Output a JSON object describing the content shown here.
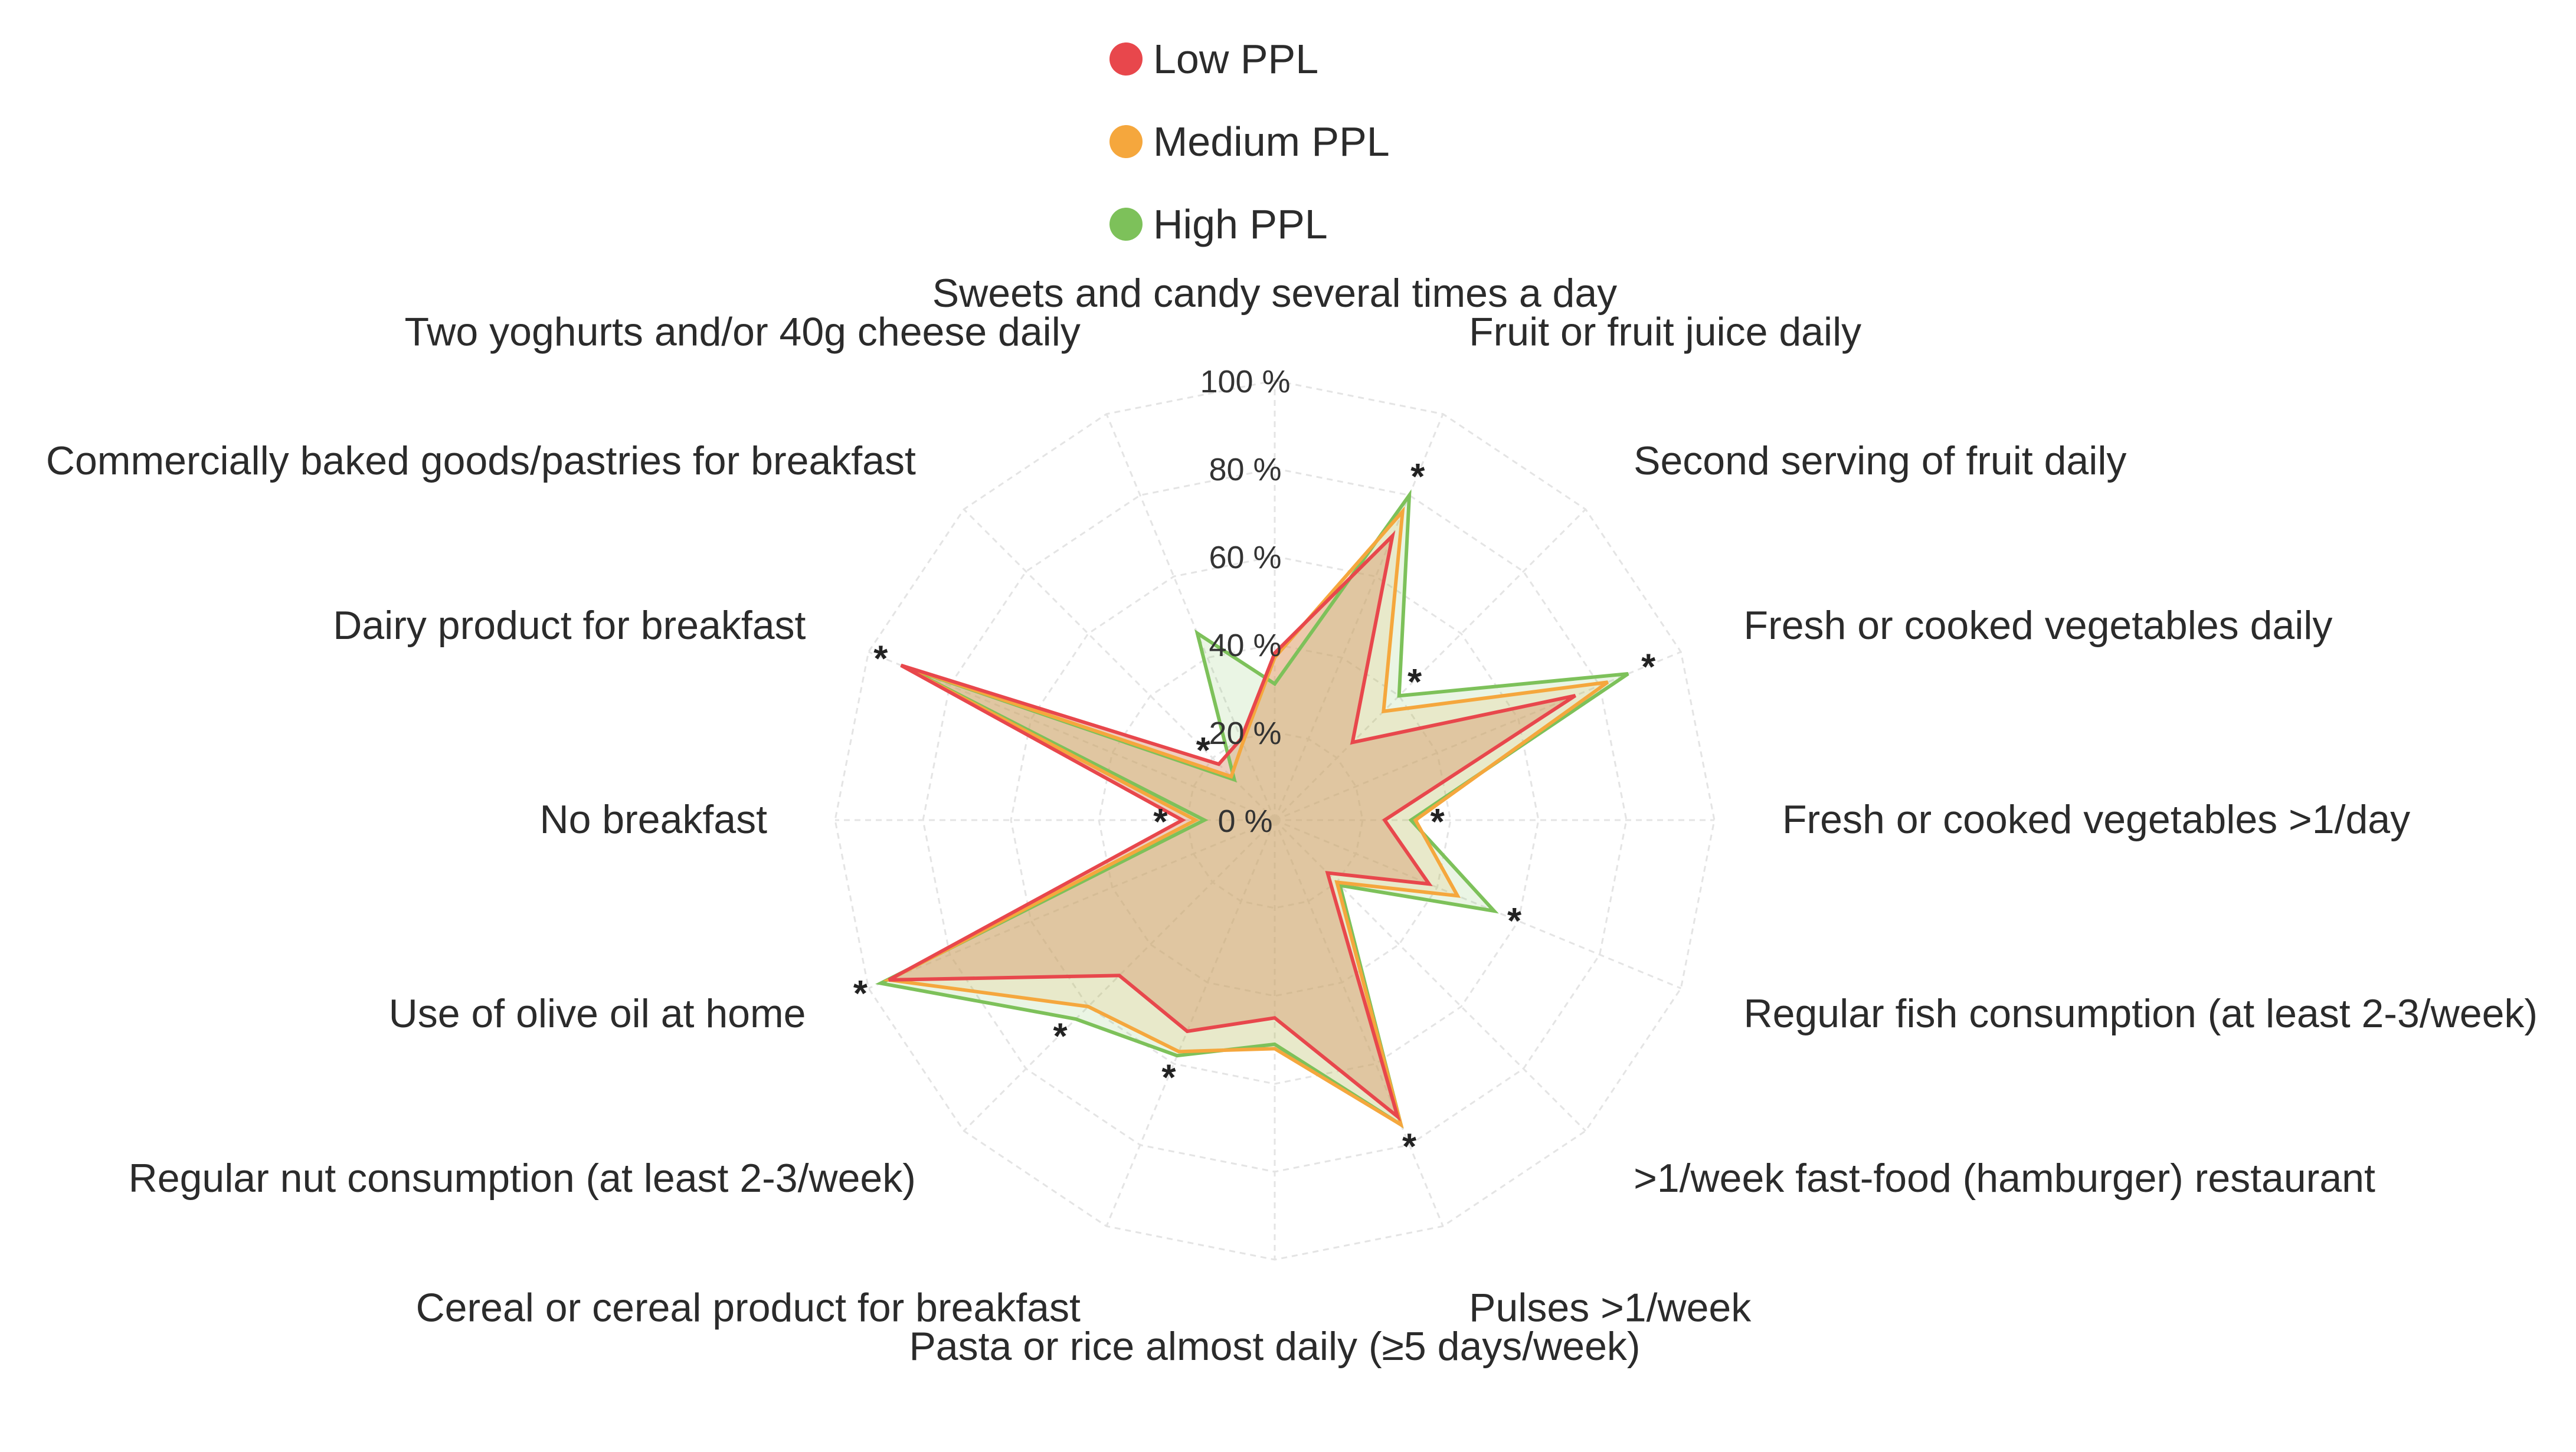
{
  "chart_data": {
    "type": "radar",
    "title": "",
    "categories": [
      "Sweets and candy several times a day",
      "Fruit or fruit juice daily",
      "Second serving of fruit daily",
      "Fresh or cooked vegetables daily",
      "Fresh or cooked vegetables >1/day",
      "Regular fish consumption (at least 2-3/week)",
      ">1/week fast-food (hamburger) restaurant",
      "Pulses >1/week",
      "Pasta or rice almost daily (≥5 days/week)",
      "Cereal or cereal product for breakfast",
      "Regular nut consumption (at least 2-3/week)",
      "Use of olive oil at home",
      "No breakfast",
      "Dairy product for breakfast",
      "Commercially baked goods/pastries for breakfast",
      "Two yoghurts and/or 40g cheese daily"
    ],
    "radial_ticks": [
      0,
      20,
      40,
      60,
      80,
      100
    ],
    "radial_tick_labels": [
      "0 %",
      "20 %",
      "40 %",
      "60 %",
      "80 %",
      "100 %"
    ],
    "rlim": [
      0,
      100
    ],
    "grid": true,
    "legend_position": "top-center",
    "significant_categories": [
      1,
      2,
      3,
      4,
      5,
      7,
      9,
      10,
      11,
      12,
      13,
      14
    ],
    "significance_marker": "*",
    "series": [
      {
        "name": "Low PPL",
        "color": "#e8474c",
        "values": [
          38,
          70,
          25,
          74,
          25,
          38,
          17,
          73,
          45,
          52,
          50,
          95,
          21,
          92,
          18,
          20
        ]
      },
      {
        "name": "Medium PPL",
        "color": "#f5a73d",
        "values": [
          37,
          76,
          35,
          82,
          32,
          45,
          20,
          75,
          52,
          57,
          60,
          95,
          18,
          92,
          14,
          19
        ]
      },
      {
        "name": "High PPL",
        "color": "#7dc15a",
        "values": [
          31,
          80,
          40,
          87,
          31,
          54,
          21,
          75,
          51,
          58,
          64,
          97,
          16,
          91,
          13,
          46
        ]
      }
    ]
  }
}
